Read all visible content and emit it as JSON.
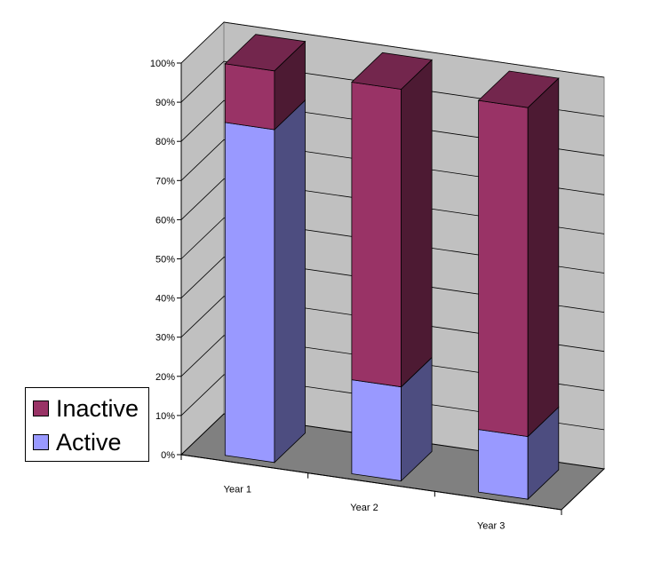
{
  "chart_data": {
    "type": "bar",
    "stacked": true,
    "three_d": true,
    "title": "",
    "xlabel": "",
    "ylabel": "",
    "ylim": [
      0,
      100
    ],
    "yticks": [
      "0%",
      "10%",
      "20%",
      "30%",
      "40%",
      "50%",
      "60%",
      "70%",
      "80%",
      "90%",
      "100%"
    ],
    "categories": [
      "Year 1",
      "Year 2",
      "Year 3"
    ],
    "series": [
      {
        "name": "Active",
        "values": [
          85,
          24,
          16
        ],
        "color": "#9999ff"
      },
      {
        "name": "Inactive",
        "values": [
          15,
          76,
          84
        ],
        "color": "#993366"
      }
    ],
    "grid": true,
    "legend_position": "left",
    "legend": [
      {
        "label": "Inactive",
        "color": "#993366"
      },
      {
        "label": "Active",
        "color": "#9999ff"
      }
    ]
  }
}
